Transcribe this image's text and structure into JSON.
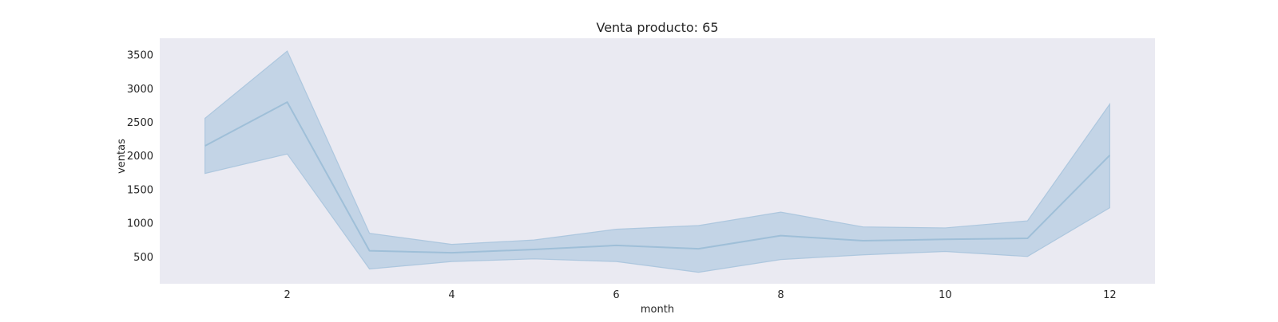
{
  "chart_data": {
    "type": "line",
    "title": "Venta producto: 65",
    "xlabel": "month",
    "ylabel": "ventas",
    "x": [
      1,
      2,
      3,
      4,
      5,
      6,
      7,
      8,
      9,
      10,
      11,
      12
    ],
    "xlim": [
      0.45,
      12.55
    ],
    "ylim": [
      100,
      3750
    ],
    "xticks": [
      2,
      4,
      6,
      8,
      10,
      12
    ],
    "yticks": [
      500,
      1000,
      1500,
      2000,
      2500,
      3000,
      3500
    ],
    "grid": false,
    "series": [
      {
        "values": [
          2150,
          2800,
          590,
          560,
          610,
          670,
          620,
          815,
          740,
          760,
          775,
          2010
        ],
        "ci_upper": [
          2560,
          3560,
          850,
          685,
          750,
          910,
          965,
          1165,
          945,
          930,
          1035,
          2770
        ],
        "ci_lower": [
          1740,
          2030,
          320,
          430,
          470,
          430,
          270,
          460,
          530,
          580,
          505,
          1230
        ]
      }
    ],
    "colors": {
      "line": "#9fbfd8",
      "band": "#a8c4dd",
      "plot_background": "#eaeaf2"
    }
  }
}
